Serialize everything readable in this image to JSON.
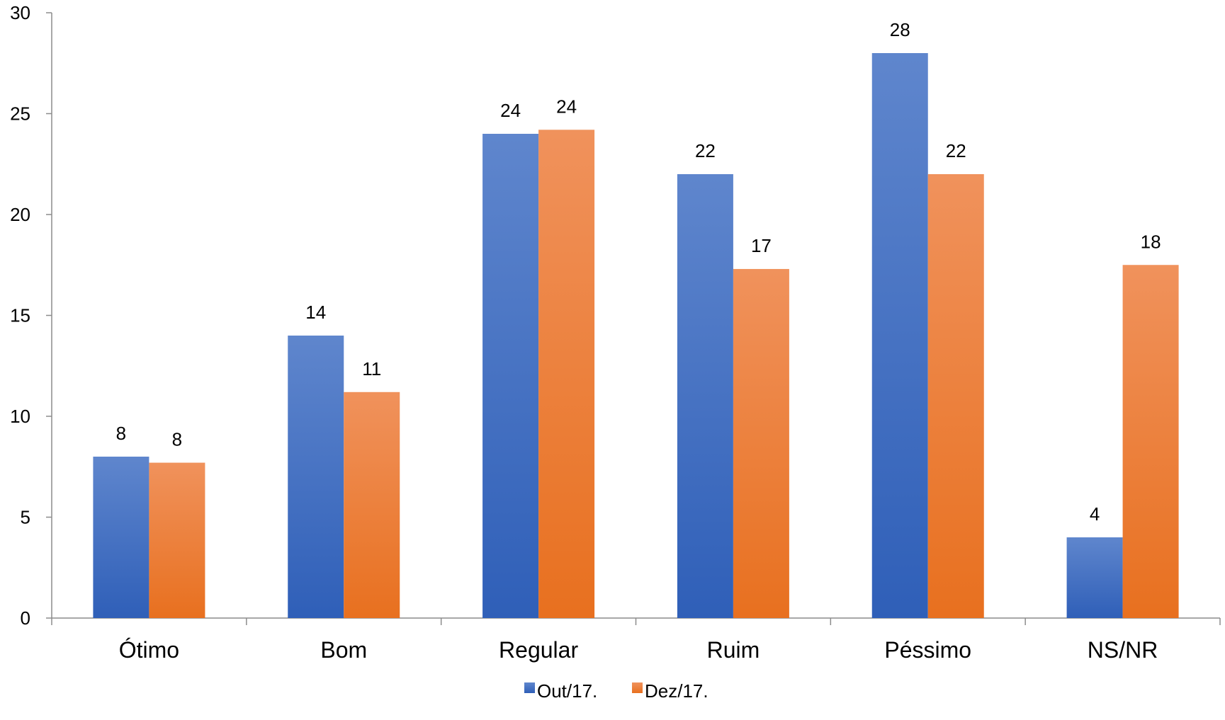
{
  "chart_data": {
    "type": "bar",
    "categories": [
      "Ótimo",
      "Bom",
      "Regular",
      "Ruim",
      "Péssimo",
      "NS/NR"
    ],
    "series": [
      {
        "name": "Out/17.",
        "values": [
          8,
          14,
          24,
          22,
          28,
          4
        ],
        "labels": [
          "8",
          "14",
          "24",
          "22",
          "28",
          "4"
        ]
      },
      {
        "name": "Dez/17.",
        "values": [
          7.7,
          11.2,
          24.2,
          17.3,
          22,
          17.5
        ],
        "labels": [
          "8",
          "11",
          "24",
          "17",
          "22",
          "18"
        ]
      }
    ],
    "ylim": [
      0,
      30
    ],
    "yticks": [
      0,
      5,
      10,
      15,
      20,
      25,
      30
    ],
    "legend_position": "bottom",
    "grid": false,
    "colors": {
      "Out/17.": {
        "light": "#5f86cd",
        "dark": "#2f5fb8"
      },
      "Dez/17.": {
        "light": "#f0925c",
        "dark": "#e8701f"
      },
      "axis": "#8c8c8c"
    }
  }
}
